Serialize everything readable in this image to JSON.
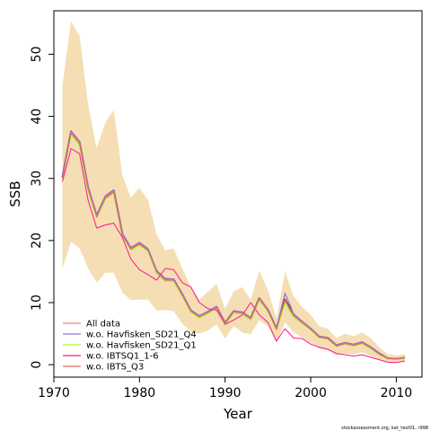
{
  "chart_data": {
    "type": "line",
    "title": "",
    "xlabel": "Year",
    "ylabel": "SSB",
    "xlim": [
      1970,
      2013
    ],
    "ylim": [
      -2,
      57
    ],
    "xticks": [
      1970,
      1980,
      1990,
      2000,
      2010
    ],
    "yticks": [
      0,
      10,
      20,
      30,
      40,
      50
    ],
    "grid": false,
    "legend_position": "bottom-left",
    "footnote": "stockassessment.org, kat_test01, r998",
    "band_color": "#F5DEB3",
    "band": {
      "x": [
        1971,
        1972,
        1973,
        1974,
        1975,
        1976,
        1977,
        1978,
        1979,
        1980,
        1981,
        1982,
        1983,
        1984,
        1985,
        1986,
        1987,
        1988,
        1989,
        1990,
        1991,
        1992,
        1993,
        1994,
        1995,
        1996,
        1997,
        1998,
        1999,
        2000,
        2001,
        2002,
        2003,
        2004,
        2005,
        2006,
        2007,
        2008,
        2009,
        2010,
        2011
      ],
      "upper": [
        45,
        55.3,
        53,
        42,
        34.8,
        39,
        41,
        30.5,
        26.9,
        28.5,
        26.5,
        21,
        18.4,
        18.7,
        15.5,
        12.5,
        10.5,
        11.8,
        13,
        9,
        11.8,
        12.5,
        10.5,
        15.2,
        12,
        7.4,
        15,
        11,
        9.3,
        8,
        6.2,
        5.8,
        4.3,
        5,
        4.6,
        5.2,
        4.3,
        2.8,
        1.7,
        1.5,
        1.7
      ],
      "lower": [
        15.5,
        19.8,
        18.8,
        15.5,
        13.2,
        14.8,
        14.8,
        11.6,
        10.4,
        10.5,
        10.5,
        8.7,
        8.8,
        8.6,
        6.6,
        5.3,
        5,
        5.5,
        6.5,
        4.2,
        6.2,
        5.2,
        4.9,
        7.2,
        6.1,
        3.5,
        6.8,
        5.2,
        4.4,
        3.5,
        2.6,
        2.3,
        1.5,
        1.8,
        1.7,
        2,
        1.4,
        0.8,
        0.4,
        0.3,
        0.5
      ]
    },
    "x": [
      1971,
      1972,
      1973,
      1974,
      1975,
      1976,
      1977,
      1978,
      1979,
      1980,
      1981,
      1982,
      1983,
      1984,
      1985,
      1986,
      1987,
      1988,
      1989,
      1990,
      1991,
      1992,
      1993,
      1994,
      1995,
      1996,
      1997,
      1998,
      1999,
      2000,
      2001,
      2002,
      2003,
      2004,
      2005,
      2006,
      2007,
      2008,
      2009,
      2010,
      2011
    ],
    "series": [
      {
        "name": "All data",
        "color": "#FA8072",
        "width": 1.2,
        "values": [
          30.2,
          37.5,
          35.8,
          28.5,
          24,
          27,
          28,
          21,
          18.7,
          19.5,
          18.5,
          15,
          13.7,
          13.7,
          11.3,
          8.7,
          7.8,
          8.5,
          9.3,
          6.7,
          8.6,
          8.4,
          7.5,
          10.7,
          8.8,
          5.8,
          10.3,
          8,
          6.9,
          5.8,
          4.5,
          4.3,
          3.1,
          3.5,
          3.2,
          3.6,
          2.8,
          1.8,
          1,
          0.9,
          1.1
        ]
      },
      {
        "name": "w.o. Havfisken_SD21_Q4",
        "color": "#9370DB",
        "width": 1.2,
        "values": [
          30.4,
          37.7,
          36,
          28.8,
          24.2,
          27.2,
          28.2,
          21.2,
          18.9,
          19.7,
          18.7,
          15.2,
          13.9,
          13.8,
          11.5,
          8.8,
          7.9,
          8.6,
          9.4,
          6.8,
          8.7,
          8.5,
          7.6,
          10.8,
          8.9,
          5.9,
          11.5,
          8.2,
          7,
          5.9,
          4.6,
          4.4,
          3.2,
          3.6,
          3.3,
          3.7,
          2.9,
          1.9,
          1.1,
          1,
          1.2
        ]
      },
      {
        "name": "w.o. Havfisken_SD21_Q1",
        "color": "#ADFF2F",
        "width": 1.2,
        "values": [
          29.8,
          37,
          35.3,
          28,
          23.6,
          26.6,
          27.6,
          20.7,
          18.4,
          19.2,
          18.2,
          14.7,
          13.4,
          13.4,
          11,
          8.4,
          7.5,
          8.2,
          9,
          6.4,
          8.3,
          8.1,
          7.2,
          10.3,
          8.5,
          5.6,
          9.8,
          7.6,
          6.6,
          5.6,
          4.3,
          4.1,
          2.9,
          3.3,
          3,
          3.4,
          2.6,
          1.6,
          0.9,
          0.8,
          1
        ]
      },
      {
        "name": "w.o. IBTSQ1_1-6",
        "color": "#FF1493",
        "width": 1.0,
        "values": [
          29.5,
          34.8,
          34,
          26.5,
          22,
          22.5,
          22.8,
          20.5,
          17,
          15.3,
          14.5,
          13.6,
          15.5,
          15.3,
          13.2,
          12.5,
          10,
          9,
          8.8,
          6.5,
          7.2,
          8,
          10,
          8,
          6.8,
          3.8,
          5.8,
          4.3,
          4.2,
          3.3,
          2.8,
          2.5,
          1.8,
          1.6,
          1.4,
          1.6,
          1.2,
          0.8,
          0.4,
          0.35,
          0.6
        ]
      },
      {
        "name": "w.o. IBTS_Q3",
        "color": "#E2725B",
        "width": 1.2,
        "values": [
          30,
          37.3,
          35.6,
          28.3,
          23.8,
          26.8,
          27.8,
          20.8,
          18.6,
          19.4,
          18.4,
          14.9,
          13.6,
          13.6,
          11.2,
          8.6,
          7.7,
          8.4,
          9.2,
          6.6,
          8.5,
          8.3,
          7.4,
          10.6,
          8.7,
          5.7,
          10.5,
          7.9,
          6.8,
          5.7,
          4.4,
          4.2,
          3,
          3.4,
          3.1,
          3.5,
          2.7,
          1.7,
          1,
          0.9,
          1.1
        ]
      }
    ],
    "main_series": {
      "color": "#000000",
      "width": 2,
      "values": [
        30.2,
        37.5,
        35.8,
        28.5,
        24,
        27,
        28,
        21,
        18.7,
        19.5,
        18.5,
        15,
        13.7,
        13.7,
        11.3,
        8.7,
        7.8,
        8.5,
        9.3,
        6.7,
        8.6,
        8.4,
        7.5,
        10.7,
        8.8,
        5.8,
        10.5,
        8,
        6.9,
        5.8,
        4.5,
        4.3,
        3.1,
        3.5,
        3.2,
        3.6,
        2.8,
        1.8,
        1,
        0.9,
        1.1
      ]
    }
  }
}
